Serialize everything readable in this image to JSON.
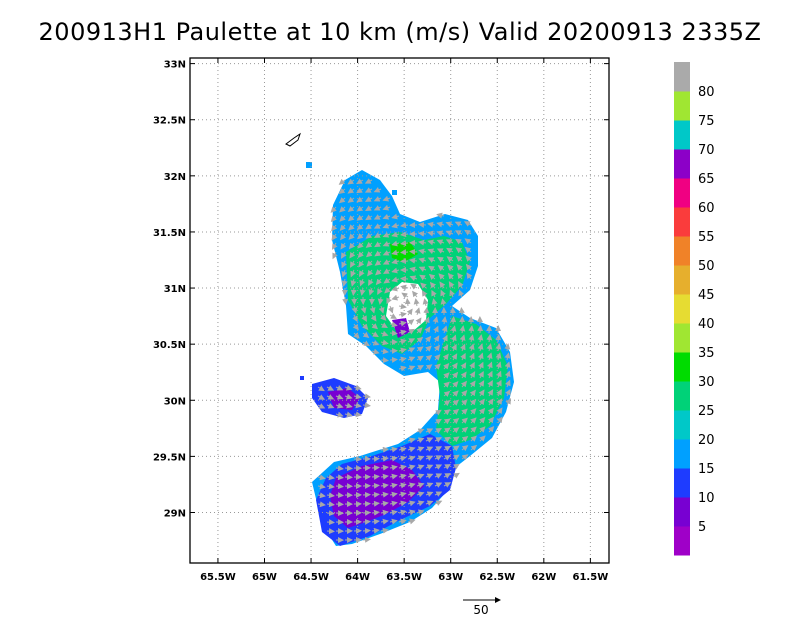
{
  "title": "200913H1 Paulette at 10 km (m/s) Valid 20200913 2335Z",
  "map": {
    "lon_range": [
      -65.8,
      -61.3
    ],
    "lat_range": [
      28.55,
      33.05
    ],
    "lon_ticks": [
      {
        "value": -65.5,
        "label": "65.5W"
      },
      {
        "value": -65,
        "label": "65W"
      },
      {
        "value": -64.5,
        "label": "64.5W"
      },
      {
        "value": -64,
        "label": "64W"
      },
      {
        "value": -63.5,
        "label": "63.5W"
      },
      {
        "value": -63,
        "label": "63W"
      },
      {
        "value": -62.5,
        "label": "62.5W"
      },
      {
        "value": -62,
        "label": "62W"
      },
      {
        "value": -61.5,
        "label": "61.5W"
      }
    ],
    "lat_ticks": [
      {
        "value": 29,
        "label": "29N"
      },
      {
        "value": 29.5,
        "label": "29.5N"
      },
      {
        "value": 30,
        "label": "30N"
      },
      {
        "value": 30.5,
        "label": "30.5N"
      },
      {
        "value": 31,
        "label": "31N"
      },
      {
        "value": 31.5,
        "label": "31.5N"
      },
      {
        "value": 32,
        "label": "32N"
      },
      {
        "value": 32.5,
        "label": "32.5N"
      },
      {
        "value": 33,
        "label": "33N"
      }
    ],
    "grid": true,
    "storm_center": [
      -63.55,
      30.85
    ]
  },
  "colorbar": {
    "bins": [
      {
        "color": "#9f00c8",
        "label": "5"
      },
      {
        "color": "#7800d2",
        "label": "10"
      },
      {
        "color": "#1e3cff",
        "label": "15"
      },
      {
        "color": "#00a0ff",
        "label": "20"
      },
      {
        "color": "#00c8c8",
        "label": "25"
      },
      {
        "color": "#00d278",
        "label": "30"
      },
      {
        "color": "#00dc00",
        "label": "35"
      },
      {
        "color": "#a0e632",
        "label": "40"
      },
      {
        "color": "#e6dc32",
        "label": "45"
      },
      {
        "color": "#e6af2d",
        "label": "50"
      },
      {
        "color": "#f08228",
        "label": "55"
      },
      {
        "color": "#fa3c3c",
        "label": "60"
      },
      {
        "color": "#f00082",
        "label": "65"
      },
      {
        "color": "#8c00c8",
        "label": "70"
      },
      {
        "color": "#00c8c8",
        "label": "75"
      },
      {
        "color": "#a0e632",
        "label": "80"
      },
      {
        "color": "#aaaaaa",
        "label": ""
      }
    ]
  },
  "vector_key": {
    "label": "50"
  }
}
